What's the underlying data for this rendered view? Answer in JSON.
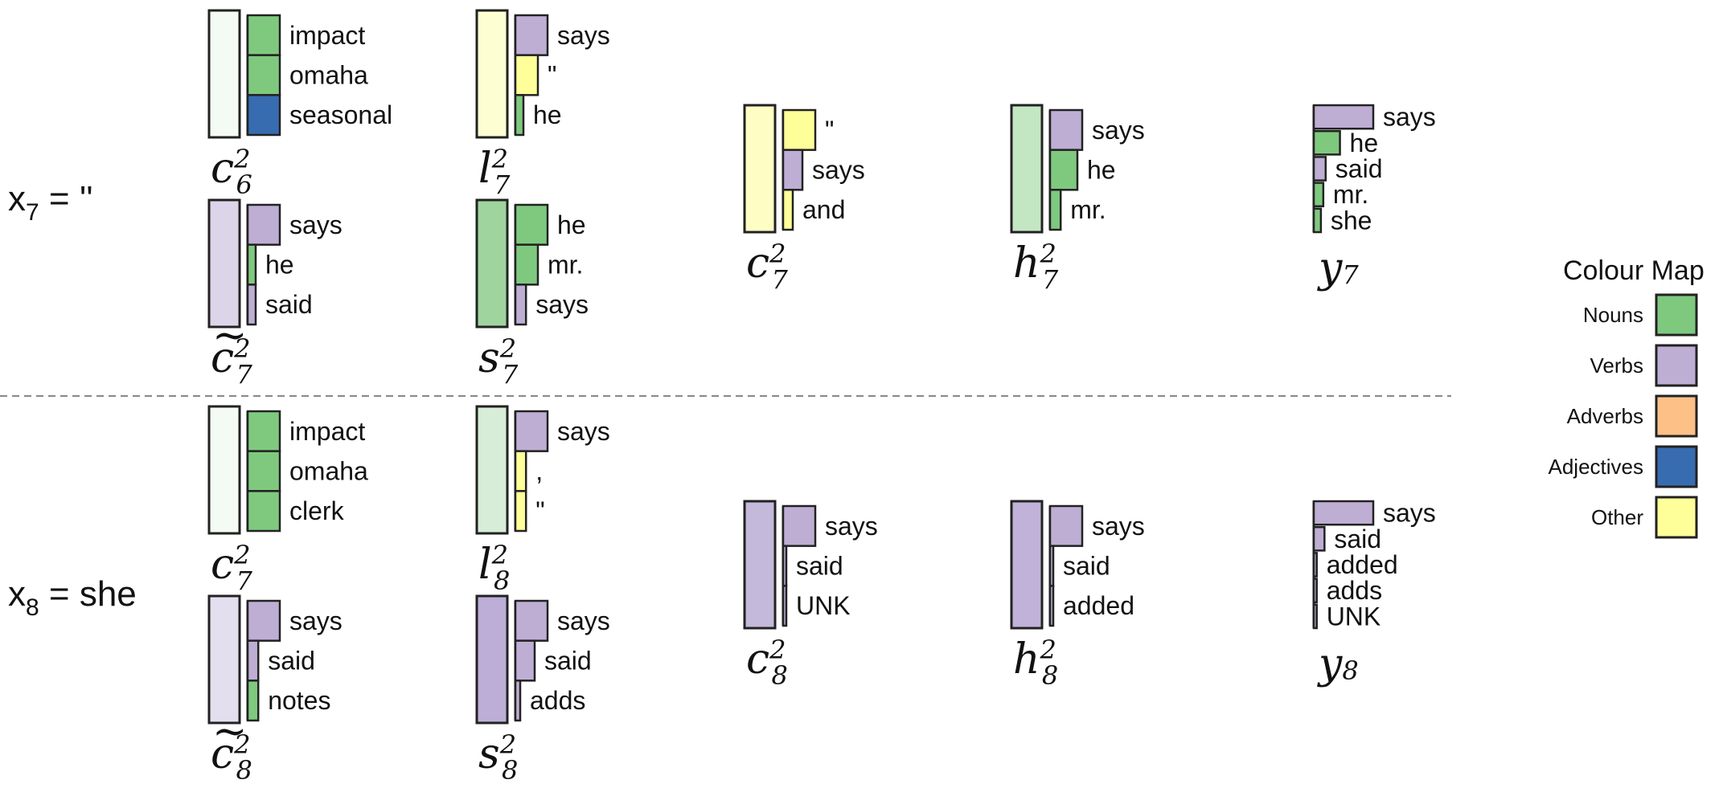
{
  "colors": {
    "Nouns": "#7fc97f",
    "Verbs": "#beaed4",
    "Adverbs": "#fdc086",
    "Adjectives": "#386cb0",
    "Other": "#ffff99"
  },
  "legend": {
    "title": "Colour Map",
    "items": [
      "Nouns",
      "Verbs",
      "Adverbs",
      "Adjectives",
      "Other"
    ]
  },
  "rows": [
    {
      "label": {
        "var": "x",
        "sub": "7",
        "rest": " = ''"
      },
      "cells": [
        {
          "base": "c",
          "mark": "",
          "sup": "2",
          "sub": "6",
          "box_color": "#f4faf4",
          "words": [
            {
              "text": "impact",
              "value": 1.0,
              "cat": "Nouns"
            },
            {
              "text": "omaha",
              "value": 1.0,
              "cat": "Nouns"
            },
            {
              "text": "seasonal",
              "value": 1.0,
              "cat": "Adjectives"
            }
          ]
        },
        {
          "base": "l",
          "mark": "",
          "sup": "2",
          "sub": "7",
          "box_color": "#fefed3",
          "words": [
            {
              "text": "says",
              "value": 1.0,
              "cat": "Verbs"
            },
            {
              "text": "\"",
              "value": 0.7,
              "cat": "Other"
            },
            {
              "text": "he",
              "value": 0.25,
              "cat": "Nouns"
            }
          ]
        },
        {
          "base": "c",
          "mark": "",
          "sup": "2",
          "sub": "7",
          "box_color": "#fefec4",
          "words": [
            {
              "text": "\"",
              "value": 1.0,
              "cat": "Other"
            },
            {
              "text": "says",
              "value": 0.6,
              "cat": "Verbs"
            },
            {
              "text": "and",
              "value": 0.3,
              "cat": "Other"
            }
          ]
        },
        {
          "base": "h",
          "mark": "",
          "sup": "2",
          "sub": "7",
          "box_color": "#c3e6c3",
          "words": [
            {
              "text": "says",
              "value": 1.0,
              "cat": "Verbs"
            },
            {
              "text": "he",
              "value": 0.85,
              "cat": "Nouns"
            },
            {
              "text": "mr.",
              "value": 0.33,
              "cat": "Nouns"
            }
          ]
        },
        {
          "base": "y",
          "mark": "",
          "sup": "",
          "sub": "7",
          "box_color": "",
          "words": [
            {
              "text": "says",
              "value": 1.0,
              "cat": "Verbs"
            },
            {
              "text": "he",
              "value": 0.44,
              "cat": "Nouns"
            },
            {
              "text": "said",
              "value": 0.2,
              "cat": "Verbs"
            },
            {
              "text": "mr.",
              "value": 0.16,
              "cat": "Nouns"
            },
            {
              "text": "she",
              "value": 0.12,
              "cat": "Nouns"
            }
          ]
        },
        {
          "base": "c",
          "mark": "~",
          "sup": "2",
          "sub": "7",
          "box_color": "#dcd4e8",
          "words": [
            {
              "text": "says",
              "value": 1.0,
              "cat": "Verbs"
            },
            {
              "text": "he",
              "value": 0.25,
              "cat": "Nouns"
            },
            {
              "text": "said",
              "value": 0.25,
              "cat": "Verbs"
            }
          ]
        },
        {
          "base": "s",
          "mark": "",
          "sup": "2",
          "sub": "7",
          "box_color": "#9fd49f",
          "words": [
            {
              "text": "he",
              "value": 1.0,
              "cat": "Nouns"
            },
            {
              "text": "mr.",
              "value": 0.7,
              "cat": "Nouns"
            },
            {
              "text": "says",
              "value": 0.33,
              "cat": "Verbs"
            }
          ]
        }
      ]
    },
    {
      "label": {
        "var": "x",
        "sub": "8",
        "rest": " = she"
      },
      "cells": [
        {
          "base": "c",
          "mark": "",
          "sup": "2",
          "sub": "7",
          "box_color": "#f4faf4",
          "words": [
            {
              "text": "impact",
              "value": 1.0,
              "cat": "Nouns"
            },
            {
              "text": "omaha",
              "value": 1.0,
              "cat": "Nouns"
            },
            {
              "text": "clerk",
              "value": 1.0,
              "cat": "Nouns"
            }
          ]
        },
        {
          "base": "l",
          "mark": "",
          "sup": "2",
          "sub": "8",
          "box_color": "#d7edd7",
          "words": [
            {
              "text": "says",
              "value": 1.0,
              "cat": "Verbs"
            },
            {
              "text": ",",
              "value": 0.33,
              "cat": "Other"
            },
            {
              "text": "\"",
              "value": 0.33,
              "cat": "Other"
            }
          ]
        },
        {
          "base": "c",
          "mark": "",
          "sup": "2",
          "sub": "8",
          "box_color": "#c4b8db",
          "words": [
            {
              "text": "says",
              "value": 1.0,
              "cat": "Verbs"
            },
            {
              "text": "said",
              "value": 0.1,
              "cat": "Verbs"
            },
            {
              "text": "UNK",
              "value": 0.1,
              "cat": "Verbs"
            }
          ]
        },
        {
          "base": "h",
          "mark": "",
          "sup": "2",
          "sub": "8",
          "box_color": "#c0b2d8",
          "words": [
            {
              "text": "says",
              "value": 1.0,
              "cat": "Verbs"
            },
            {
              "text": "said",
              "value": 0.1,
              "cat": "Verbs"
            },
            {
              "text": "added",
              "value": 0.1,
              "cat": "Verbs"
            }
          ]
        },
        {
          "base": "y",
          "mark": "",
          "sup": "",
          "sub": "8",
          "box_color": "",
          "words": [
            {
              "text": "says",
              "value": 1.0,
              "cat": "Verbs"
            },
            {
              "text": "said",
              "value": 0.18,
              "cat": "Verbs"
            },
            {
              "text": "added",
              "value": 0.05,
              "cat": "Verbs"
            },
            {
              "text": "adds",
              "value": 0.05,
              "cat": "Verbs"
            },
            {
              "text": "UNK",
              "value": 0.05,
              "cat": "Verbs"
            }
          ]
        },
        {
          "base": "c",
          "mark": "~",
          "sup": "2",
          "sub": "8",
          "box_color": "#e4dfee",
          "words": [
            {
              "text": "says",
              "value": 1.0,
              "cat": "Verbs"
            },
            {
              "text": "said",
              "value": 0.33,
              "cat": "Verbs"
            },
            {
              "text": "notes",
              "value": 0.33,
              "cat": "Nouns"
            }
          ]
        },
        {
          "base": "s",
          "mark": "",
          "sup": "2",
          "sub": "8",
          "box_color": "#bcaed6",
          "words": [
            {
              "text": "says",
              "value": 1.0,
              "cat": "Verbs"
            },
            {
              "text": "said",
              "value": 0.6,
              "cat": "Verbs"
            },
            {
              "text": "adds",
              "value": 0.15,
              "cat": "Verbs"
            }
          ]
        }
      ]
    }
  ]
}
